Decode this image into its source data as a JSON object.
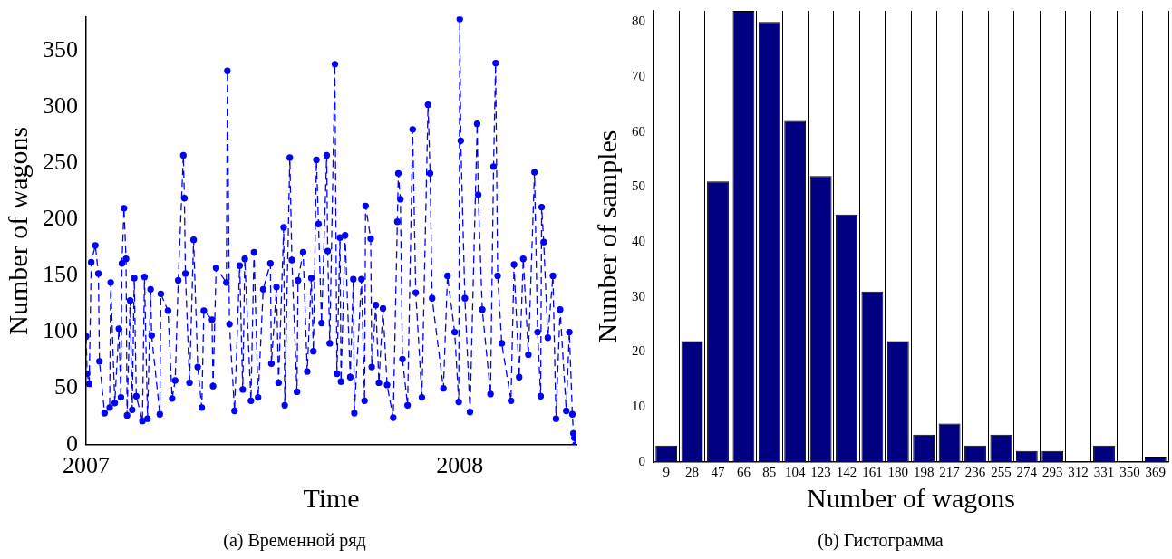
{
  "chart_data": [
    {
      "type": "line",
      "xlabel": "Time",
      "ylabel": "Number of wagons",
      "color": "#0000ff",
      "marker": "circle",
      "line_style": "dashed",
      "grid": false,
      "xlim": [
        "2007-01-01",
        "2008-04-24"
      ],
      "xticks": [
        "2007",
        "2008"
      ],
      "ylim": [
        0,
        380
      ],
      "yticks": [
        0,
        50,
        100,
        150,
        200,
        250,
        300,
        350
      ],
      "x": [
        "2007-01-01",
        "2007-01-02",
        "2007-01-04",
        "2007-01-06",
        "2007-01-10",
        "2007-01-13",
        "2007-01-14",
        "2007-01-19",
        "2007-01-24",
        "2007-01-25",
        "2007-01-29",
        "2007-02-02",
        "2007-02-04",
        "2007-02-05",
        "2007-02-07",
        "2007-02-09",
        "2007-02-10",
        "2007-02-13",
        "2007-02-15",
        "2007-02-17",
        "2007-02-19",
        "2007-02-25",
        "2007-02-27",
        "2007-03-02",
        "2007-03-05",
        "2007-03-06",
        "2007-03-14",
        "2007-03-15",
        "2007-03-22",
        "2007-03-26",
        "2007-03-29",
        "2007-04-01",
        "2007-04-06",
        "2007-04-07",
        "2007-04-08",
        "2007-04-12",
        "2007-04-16",
        "2007-04-20",
        "2007-04-24",
        "2007-04-26",
        "2007-05-04",
        "2007-05-05",
        "2007-05-08",
        "2007-05-18",
        "2007-05-19",
        "2007-05-21",
        "2007-05-26",
        "2007-05-31",
        "2007-06-03",
        "2007-06-05",
        "2007-06-11",
        "2007-06-14",
        "2007-06-18",
        "2007-06-23",
        "2007-06-30",
        "2007-07-01",
        "2007-07-06",
        "2007-07-08",
        "2007-07-13",
        "2007-07-14",
        "2007-07-19",
        "2007-07-21",
        "2007-07-26",
        "2007-07-27",
        "2007-08-01",
        "2007-08-05",
        "2007-08-09",
        "2007-08-11",
        "2007-08-14",
        "2007-08-16",
        "2007-08-19",
        "2007-08-24",
        "2007-08-25",
        "2007-08-27",
        "2007-09-01",
        "2007-09-03",
        "2007-09-06",
        "2007-09-07",
        "2007-09-11",
        "2007-09-16",
        "2007-09-19",
        "2007-09-20",
        "2007-09-27",
        "2007-09-30",
        "2007-10-01",
        "2007-10-06",
        "2007-10-07",
        "2007-10-11",
        "2007-10-14",
        "2007-10-18",
        "2007-10-22",
        "2007-10-28",
        "2007-11-01",
        "2007-11-02",
        "2007-11-04",
        "2007-11-06",
        "2007-11-11",
        "2007-11-16",
        "2007-11-19",
        "2007-11-25",
        "2007-12-01",
        "2007-12-03",
        "2007-12-05",
        "2007-12-16",
        "2007-12-20",
        "2007-12-27",
        "2007-12-31",
        "2008-01-01",
        "2008-01-02",
        "2008-01-06",
        "2008-01-11",
        "2008-01-18",
        "2008-01-19",
        "2008-01-23",
        "2008-01-31",
        "2008-02-03",
        "2008-02-05",
        "2008-02-07",
        "2008-02-11",
        "2008-02-20",
        "2008-02-23",
        "2008-02-28",
        "2008-03-03",
        "2008-03-08",
        "2008-03-14",
        "2008-03-17",
        "2008-03-20",
        "2008-03-21",
        "2008-03-23",
        "2008-03-27",
        "2008-04-01",
        "2008-04-04",
        "2008-04-08",
        "2008-04-14",
        "2008-04-17",
        "2008-04-20",
        "2008-04-21",
        "2008-04-22",
        "2008-04-23"
      ],
      "values": [
        96,
        63,
        54,
        162,
        177,
        152,
        74,
        28,
        33,
        144,
        37,
        103,
        42,
        161,
        210,
        165,
        26,
        128,
        31,
        148,
        43,
        21,
        149,
        23,
        138,
        97,
        27,
        134,
        119,
        41,
        57,
        146,
        257,
        219,
        152,
        55,
        182,
        69,
        33,
        119,
        111,
        52,
        157,
        144,
        332,
        107,
        30,
        159,
        49,
        165,
        39,
        171,
        42,
        138,
        161,
        72,
        140,
        55,
        193,
        35,
        255,
        164,
        47,
        146,
        171,
        65,
        148,
        83,
        253,
        196,
        108,
        257,
        172,
        90,
        338,
        63,
        184,
        56,
        186,
        60,
        147,
        28,
        147,
        39,
        212,
        183,
        69,
        124,
        55,
        121,
        53,
        24,
        198,
        241,
        218,
        76,
        35,
        280,
        135,
        42,
        302,
        241,
        130,
        50,
        150,
        100,
        38,
        378,
        270,
        130,
        29,
        285,
        222,
        120,
        45,
        247,
        339,
        150,
        90,
        39,
        160,
        60,
        165,
        80,
        242,
        100,
        43,
        211,
        180,
        95,
        150,
        23,
        120,
        30,
        100,
        27,
        10,
        6,
        0
      ],
      "annotations": [
        "(a) Временной ряд"
      ]
    },
    {
      "type": "bar",
      "xlabel": "Number of wagons",
      "ylabel": "Number of samples",
      "color": "#000080",
      "grid": "x",
      "categories": [
        "9",
        "28",
        "47",
        "66",
        "85",
        "104",
        "123",
        "142",
        "161",
        "180",
        "198",
        "217",
        "236",
        "255",
        "274",
        "293",
        "312",
        "331",
        "350",
        "369"
      ],
      "values": [
        3,
        22,
        51,
        82,
        80,
        62,
        52,
        45,
        31,
        22,
        5,
        7,
        3,
        5,
        2,
        2,
        0,
        3,
        0,
        1
      ],
      "ylim": [
        0,
        82
      ],
      "yticks": [
        0,
        10,
        20,
        30,
        40,
        50,
        60,
        70,
        80
      ],
      "annotations": [
        "(b) Гистограмма"
      ]
    }
  ]
}
